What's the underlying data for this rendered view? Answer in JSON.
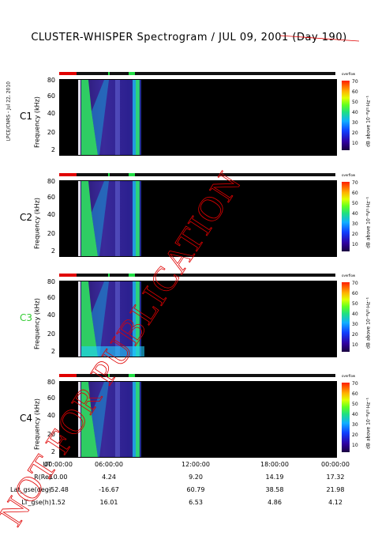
{
  "title": "CLUSTER-WHISPER Spectrogram / JUL 09, 2001 (Day 190)",
  "credit": "LPCE/CNRS - Jul 22, 2010",
  "panel_top_tag": "overflow",
  "watermark": "NOT FOR PUBLICATION",
  "colors": {
    "flag_red": "#e00000",
    "flag_green": "#22dd44",
    "c3_label": "#33cc33",
    "watermark": "#e00000"
  },
  "chart_data": [
    {
      "type": "heatmap",
      "spacecraft": "C1",
      "ylabel": "Frequency (kHz)",
      "ylim": [
        2,
        80
      ],
      "yticks": [
        "80",
        "60",
        "40",
        "20",
        "2"
      ],
      "colorbar": {
        "label": "dB above 10⁻⁸V²·Hz⁻¹",
        "ticks": [
          "70",
          "60",
          "50",
          "40",
          "30",
          "20",
          "10"
        ]
      }
    },
    {
      "type": "heatmap",
      "spacecraft": "C2",
      "ylabel": "Frequency (kHz)",
      "ylim": [
        2,
        80
      ],
      "yticks": [
        "80",
        "60",
        "40",
        "20",
        "2"
      ],
      "colorbar": {
        "label": "dB above 10⁻⁸V²·Hz⁻¹",
        "ticks": [
          "70",
          "60",
          "50",
          "40",
          "30",
          "20",
          "10"
        ]
      }
    },
    {
      "type": "heatmap",
      "spacecraft": "C3",
      "ylabel": "Frequency (kHz)",
      "ylim": [
        2,
        80
      ],
      "yticks": [
        "80",
        "60",
        "40",
        "20",
        "2"
      ],
      "colorbar": {
        "label": "dB above 10⁻⁸V²·Hz⁻¹",
        "ticks": [
          "70",
          "60",
          "50",
          "40",
          "30",
          "20",
          "10"
        ]
      }
    },
    {
      "type": "heatmap",
      "spacecraft": "C4",
      "ylabel": "Frequency (kHz)",
      "ylim": [
        2,
        80
      ],
      "yticks": [
        "80",
        "60",
        "40",
        "20",
        "2"
      ],
      "colorbar": {
        "label": "dB above 10⁻⁸V²·Hz⁻¹",
        "ticks": [
          "70",
          "60",
          "50",
          "40",
          "30",
          "20",
          "10"
        ]
      }
    }
  ],
  "x_axis": {
    "rows": [
      {
        "label": "UT",
        "values": [
          "00:00:00",
          "06:00:00",
          "12:00:00",
          "18:00:00",
          "00:00:00"
        ]
      },
      {
        "label": "R(Re)",
        "values": [
          "10.00",
          "4.24",
          "9.20",
          "14.19",
          "17.32"
        ]
      },
      {
        "label": "Lat_gse(deg)",
        "values": [
          "-52.48",
          "-16.67",
          "60.79",
          "38.58",
          "21.98"
        ]
      },
      {
        "label": "LT_gse(h)",
        "values": [
          "1.52",
          "16.01",
          "6.53",
          "4.86",
          "4.12"
        ]
      }
    ]
  }
}
